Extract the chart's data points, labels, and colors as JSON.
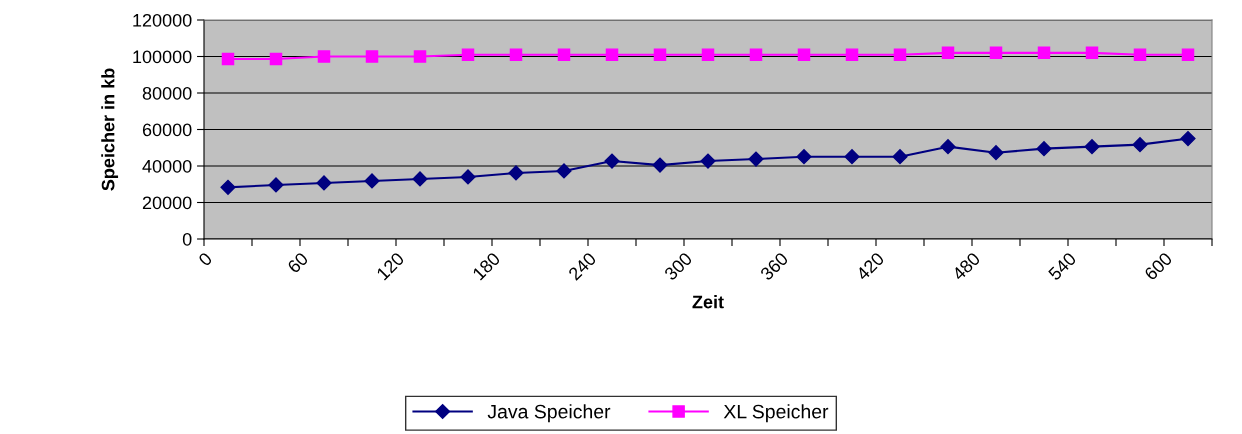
{
  "chart_data": {
    "type": "line",
    "xlabel": "Zeit",
    "ylabel": "Speicher in kb",
    "x": [
      15,
      45,
      75,
      105,
      135,
      165,
      195,
      225,
      255,
      285,
      315,
      345,
      375,
      405,
      435,
      465,
      495,
      525,
      555,
      585,
      615
    ],
    "series": [
      {
        "name": "Java Speicher",
        "color": "#000080",
        "marker": "diamond",
        "values": [
          28300,
          29600,
          30700,
          31800,
          32900,
          34000,
          36200,
          37300,
          42700,
          40500,
          42700,
          43800,
          45100,
          45100,
          45100,
          50600,
          47300,
          49500,
          50600,
          51700,
          55000
        ]
      },
      {
        "name": "XL Speicher",
        "color": "#ff00ff",
        "marker": "square",
        "values": [
          98600,
          98600,
          100000,
          100000,
          100000,
          101000,
          101000,
          101000,
          101000,
          101000,
          101000,
          101000,
          101000,
          101000,
          101000,
          102000,
          102000,
          102000,
          102000,
          101000,
          101000
        ]
      }
    ],
    "xlim": [
      0,
      630
    ],
    "xticks": [
      0,
      {
        "value": 30,
        "label": null
      },
      60,
      {
        "value": 90,
        "label": null
      },
      120,
      {
        "value": 150,
        "label": null
      },
      180,
      {
        "value": 210,
        "label": null
      },
      240,
      {
        "value": 270,
        "label": null
      },
      300,
      {
        "value": 330,
        "label": null
      },
      360,
      {
        "value": 390,
        "label": null
      },
      420,
      {
        "value": 450,
        "label": null
      },
      480,
      {
        "value": 510,
        "label": null
      },
      540,
      {
        "value": 570,
        "label": null
      },
      600,
      {
        "value": 630,
        "label": null
      }
    ],
    "ylim": [
      0,
      120000
    ],
    "yticks": [
      0,
      20000,
      40000,
      60000,
      80000,
      100000,
      120000
    ],
    "grid": "y",
    "legend": "bottom",
    "line_style": "solid"
  }
}
